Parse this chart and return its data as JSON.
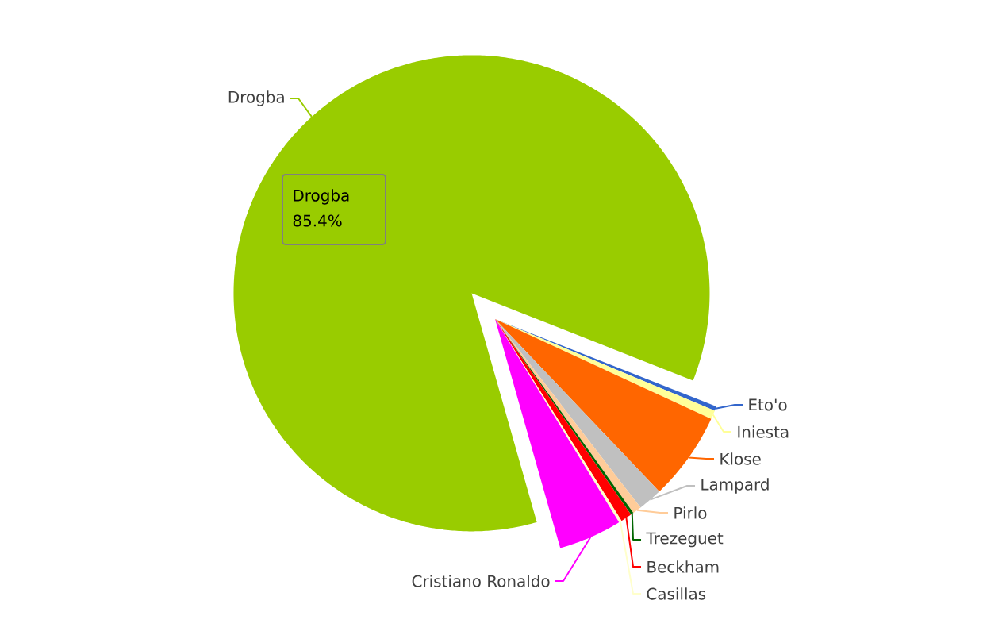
{
  "chart_data": {
    "type": "pie",
    "categories": [
      "Drogba",
      "Eto'o",
      "Iniesta",
      "Klose",
      "Lampard",
      "Pirlo",
      "Trezeguet",
      "Beckham",
      "Casillas",
      "Cristiano Ronaldo"
    ],
    "values": [
      85.4,
      0.3,
      0.6,
      6.0,
      1.65,
      0.6,
      0.2,
      0.75,
      0.2,
      4.3
    ],
    "colors": [
      "#99cc00",
      "#3366cc",
      "#ffff99",
      "#ff6600",
      "#c0c0c0",
      "#ffcc99",
      "#006600",
      "#ff0000",
      "#ffffcc",
      "#ff00ff"
    ],
    "annotations": [
      "Drogba",
      "85.4%"
    ]
  }
}
